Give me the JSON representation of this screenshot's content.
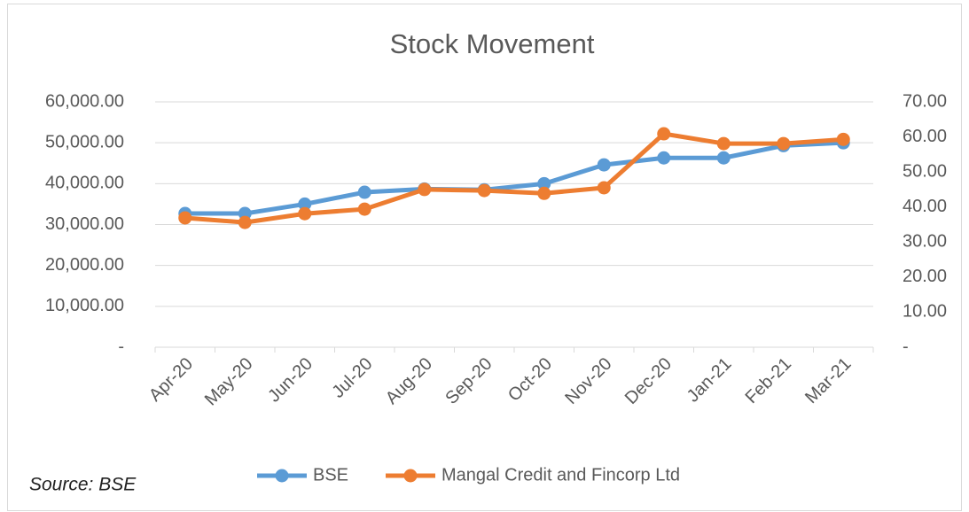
{
  "chart_data": {
    "type": "line",
    "title": "Stock Movement",
    "source": "Source: BSE",
    "categories": [
      "Apr-20",
      "May-20",
      "Jun-20",
      "Jul-20",
      "Aug-20",
      "Sep-20",
      "Oct-20",
      "Nov-20",
      "Dec-20",
      "Jan-21",
      "Feb-21",
      "Mar-21"
    ],
    "series": [
      {
        "name": "BSE",
        "color": "#5b9bd5",
        "axis": "y",
        "values": [
          32700,
          32700,
          35000,
          37900,
          38700,
          38500,
          40000,
          44600,
          46300,
          46300,
          49300,
          50000
        ]
      },
      {
        "name": "Mangal Credit and Fincorp Ltd",
        "color": "#ed7d31",
        "axis": "y2",
        "values": [
          36.9,
          35.6,
          38.1,
          39.4,
          45.0,
          44.7,
          43.9,
          45.5,
          60.9,
          58.1,
          58.1,
          59.3
        ]
      }
    ],
    "ylim": [
      0,
      60000
    ],
    "yticks": [
      {
        "value": 0,
        "label": "-"
      },
      {
        "value": 10000,
        "label": "10,000.00"
      },
      {
        "value": 20000,
        "label": "20,000.00"
      },
      {
        "value": 30000,
        "label": "30,000.00"
      },
      {
        "value": 40000,
        "label": "40,000.00"
      },
      {
        "value": 50000,
        "label": "50,000.00"
      },
      {
        "value": 60000,
        "label": "60,000.00"
      }
    ],
    "y2lim": [
      0,
      70
    ],
    "y2ticks": [
      {
        "value": 0,
        "label": "-"
      },
      {
        "value": 10,
        "label": "10.00"
      },
      {
        "value": 20,
        "label": "20.00"
      },
      {
        "value": 30,
        "label": "30.00"
      },
      {
        "value": 40,
        "label": "40.00"
      },
      {
        "value": 50,
        "label": "50.00"
      },
      {
        "value": 60,
        "label": "60.00"
      },
      {
        "value": 70,
        "label": "70.00"
      }
    ],
    "grid": true,
    "legend": "bottom"
  }
}
